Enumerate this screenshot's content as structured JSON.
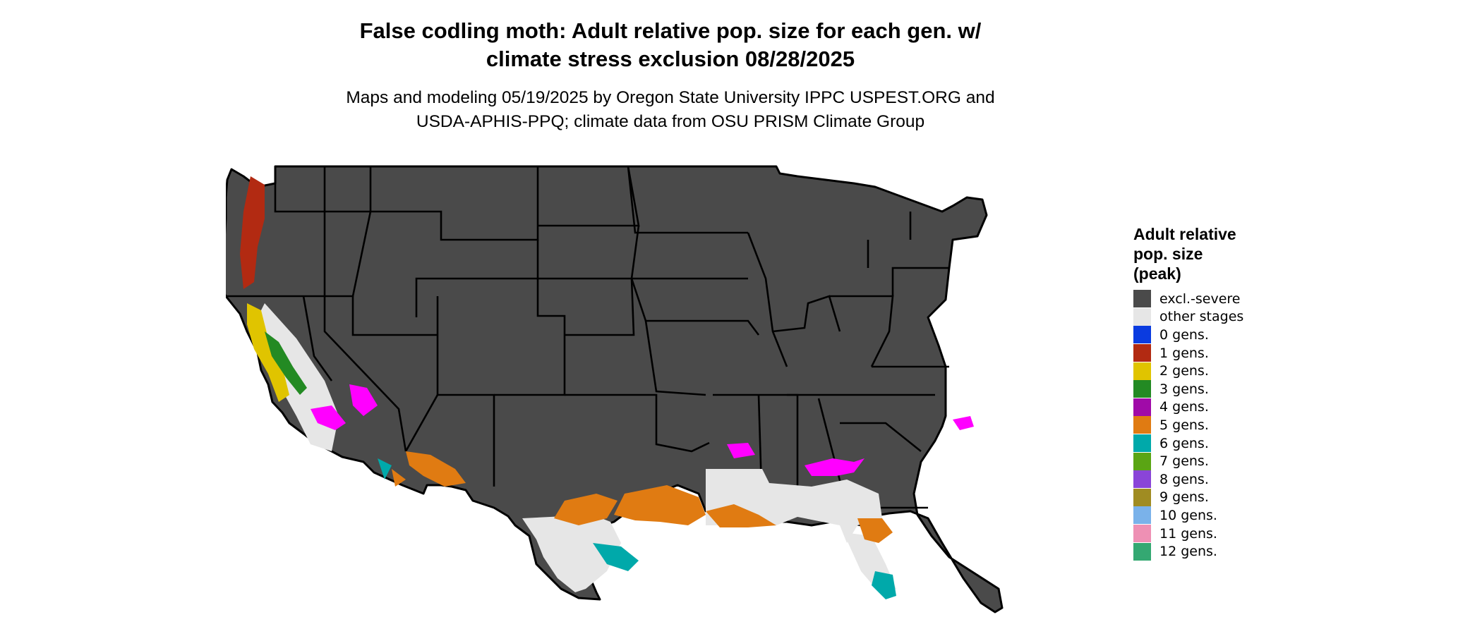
{
  "title_line1": "False codling moth: Adult relative pop. size for each gen. w/",
  "title_line2": "climate stress exclusion 08/28/2025",
  "subtitle_line1": "Maps and modeling 05/19/2025 by Oregon State University IPPC USPEST.ORG and",
  "subtitle_line2": "USDA-APHIS-PPQ; climate data from OSU PRISM Climate Group",
  "legend": {
    "title_lines": [
      "Adult relative",
      "pop. size",
      "(peak)"
    ],
    "items": [
      {
        "label": "excl.-severe",
        "color": "#4a4a4a"
      },
      {
        "label": "other stages",
        "color": "#e6e6e6"
      },
      {
        "label": "0 gens.",
        "color": "#0a3be0"
      },
      {
        "label": "1 gens.",
        "color": "#b22a12"
      },
      {
        "label": "2 gens.",
        "color": "#e0c400"
      },
      {
        "label": "3 gens.",
        "color": "#238a23"
      },
      {
        "label": "4 gens.",
        "color": "#a00aa8"
      },
      {
        "label": "5 gens.",
        "color": "#e07b12"
      },
      {
        "label": "6 gens.",
        "color": "#00a9aa"
      },
      {
        "label": "7 gens.",
        "color": "#5aa514"
      },
      {
        "label": "8 gens.",
        "color": "#8a45d8"
      },
      {
        "label": "9 gens.",
        "color": "#a08c22"
      },
      {
        "label": "10 gens.",
        "color": "#7ab2ea"
      },
      {
        "label": "11 gens.",
        "color": "#ee90b4"
      },
      {
        "label": "12 gens.",
        "color": "#34a872"
      }
    ]
  },
  "map_colors": {
    "excluded": "#4a4a4a",
    "other_stages": "#e6e6e6",
    "magenta_gens": "#ff00ff",
    "border": "#000000"
  }
}
